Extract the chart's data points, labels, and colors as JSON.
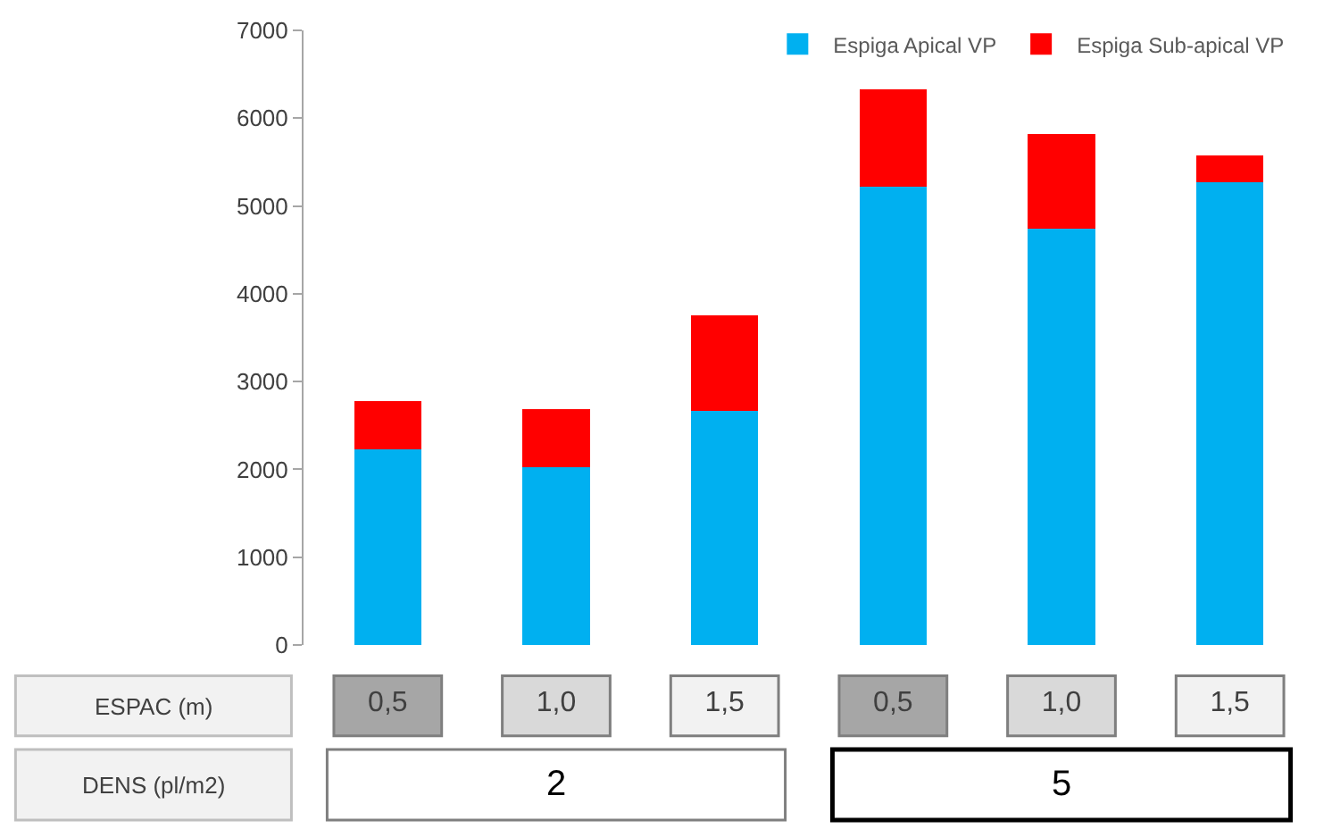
{
  "chart_data": {
    "type": "bar",
    "stacked": true,
    "categories": [
      "0,5",
      "1,0",
      "1,5",
      "0,5",
      "1,0",
      "1,5"
    ],
    "series": [
      {
        "name": "Espiga Apical VP",
        "color": "#00b0f0",
        "values": [
          2230,
          2020,
          2670,
          5220,
          4740,
          5270
        ]
      },
      {
        "name": "Espiga Sub-apical VP",
        "color": "#ff0000",
        "values": [
          550,
          670,
          1080,
          1110,
          1080,
          310
        ]
      }
    ],
    "ylim": [
      0,
      7000
    ],
    "yticks": [
      0,
      1000,
      2000,
      3000,
      4000,
      5000,
      6000,
      7000
    ],
    "grid": false,
    "legend": "top right",
    "annotations": [
      "ESPAC (m)",
      "DENS (pl/m2)",
      "2",
      "5"
    ]
  }
}
